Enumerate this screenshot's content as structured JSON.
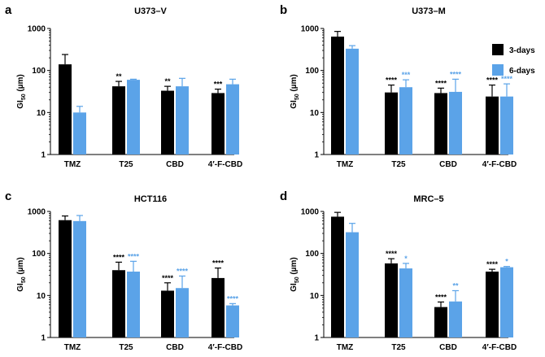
{
  "colors": {
    "series_3d": "#000000",
    "series_6d": "#5ba3e8"
  },
  "legend": [
    {
      "name": "3-days",
      "color": "#000000"
    },
    {
      "name": "6-days",
      "color": "#5ba3e8"
    }
  ],
  "chart_data": [
    {
      "panel": "a",
      "title": "U373–V",
      "type": "bar",
      "ylabel": {
        "main": "GI",
        "sub": "50",
        "unit": " (µm)"
      },
      "yscale": "log",
      "ylim": [
        1,
        1000
      ],
      "yticks": [
        {
          "value": 1,
          "label": "1"
        },
        {
          "value": 10,
          "label": "10"
        },
        {
          "value": 100,
          "label": "100"
        },
        {
          "value": 1000,
          "label": "1000"
        }
      ],
      "categories": [
        "TMZ",
        "T25",
        "CBD",
        "4′-F-CBD"
      ],
      "series": [
        {
          "name": "3-days",
          "values": [
            140,
            42,
            33,
            29
          ],
          "errors": [
            240,
            55,
            42,
            36
          ],
          "sig": [
            "",
            "**",
            "**",
            "***"
          ]
        },
        {
          "name": "6-days",
          "values": [
            10,
            60,
            42,
            47
          ],
          "errors": [
            14,
            62,
            65,
            62
          ],
          "sig": [
            "",
            "",
            "",
            ""
          ]
        }
      ]
    },
    {
      "panel": "b",
      "title": "U373–M",
      "type": "bar",
      "ylabel": {
        "main": "GI",
        "sub": "50",
        "unit": " (µm)"
      },
      "yscale": "log",
      "ylim": [
        1,
        1000
      ],
      "yticks": [
        {
          "value": 1,
          "label": "1"
        },
        {
          "value": 10,
          "label": "10"
        },
        {
          "value": 100,
          "label": "100"
        },
        {
          "value": 1000,
          "label": "1000"
        }
      ],
      "categories": [
        "TMZ",
        "T25",
        "CBD",
        "4′-F-CBD"
      ],
      "series": [
        {
          "name": "3-days",
          "values": [
            640,
            30,
            29,
            24
          ],
          "errors": [
            850,
            45,
            38,
            45
          ],
          "sig": [
            "",
            "****",
            "****",
            "****"
          ]
        },
        {
          "name": "6-days",
          "values": [
            330,
            40,
            31,
            24
          ],
          "errors": [
            390,
            60,
            62,
            48
          ],
          "sig": [
            "",
            "***",
            "****",
            "****"
          ]
        }
      ]
    },
    {
      "panel": "c",
      "title": "HCT116",
      "type": "bar",
      "ylabel": {
        "main": "GI",
        "sub": "50",
        "unit": " (µm)"
      },
      "yscale": "log",
      "ylim": [
        1,
        1000
      ],
      "yticks": [
        {
          "value": 1,
          "label": "1"
        },
        {
          "value": 10,
          "label": "10"
        },
        {
          "value": 100,
          "label": "100"
        },
        {
          "value": 1000,
          "label": "1000"
        }
      ],
      "categories": [
        "TMZ",
        "T25",
        "CBD",
        "4′-F-CBD"
      ],
      "series": [
        {
          "name": "3-days",
          "values": [
            620,
            40,
            13,
            26
          ],
          "errors": [
            780,
            62,
            20,
            45
          ],
          "sig": [
            "",
            "****",
            "****",
            "****"
          ]
        },
        {
          "name": "6-days",
          "values": [
            590,
            37,
            15,
            5.8
          ],
          "errors": [
            800,
            65,
            29,
            6.4
          ],
          "sig": [
            "",
            "****",
            "****",
            "****"
          ]
        }
      ]
    },
    {
      "panel": "d",
      "title": "MRC–5",
      "type": "bar",
      "ylabel": {
        "main": "GI",
        "sub": "50",
        "unit": " (µm)"
      },
      "yscale": "log",
      "ylim": [
        1,
        1000
      ],
      "yticks": [
        {
          "value": 1,
          "label": "1"
        },
        {
          "value": 10,
          "label": "10"
        },
        {
          "value": 100,
          "label": "100"
        },
        {
          "value": 1000,
          "label": "1000"
        }
      ],
      "categories": [
        "TMZ",
        "T25",
        "CBD",
        "4′-F-CBD"
      ],
      "series": [
        {
          "name": "3-days",
          "values": [
            750,
            58,
            5.3,
            37
          ],
          "errors": [
            950,
            75,
            7,
            42
          ],
          "sig": [
            "",
            "****",
            "****",
            "****"
          ]
        },
        {
          "name": "6-days",
          "values": [
            320,
            44,
            7.2,
            47
          ],
          "errors": [
            520,
            58,
            13,
            49
          ],
          "sig": [
            "",
            "*",
            "**",
            "*"
          ]
        }
      ]
    }
  ]
}
